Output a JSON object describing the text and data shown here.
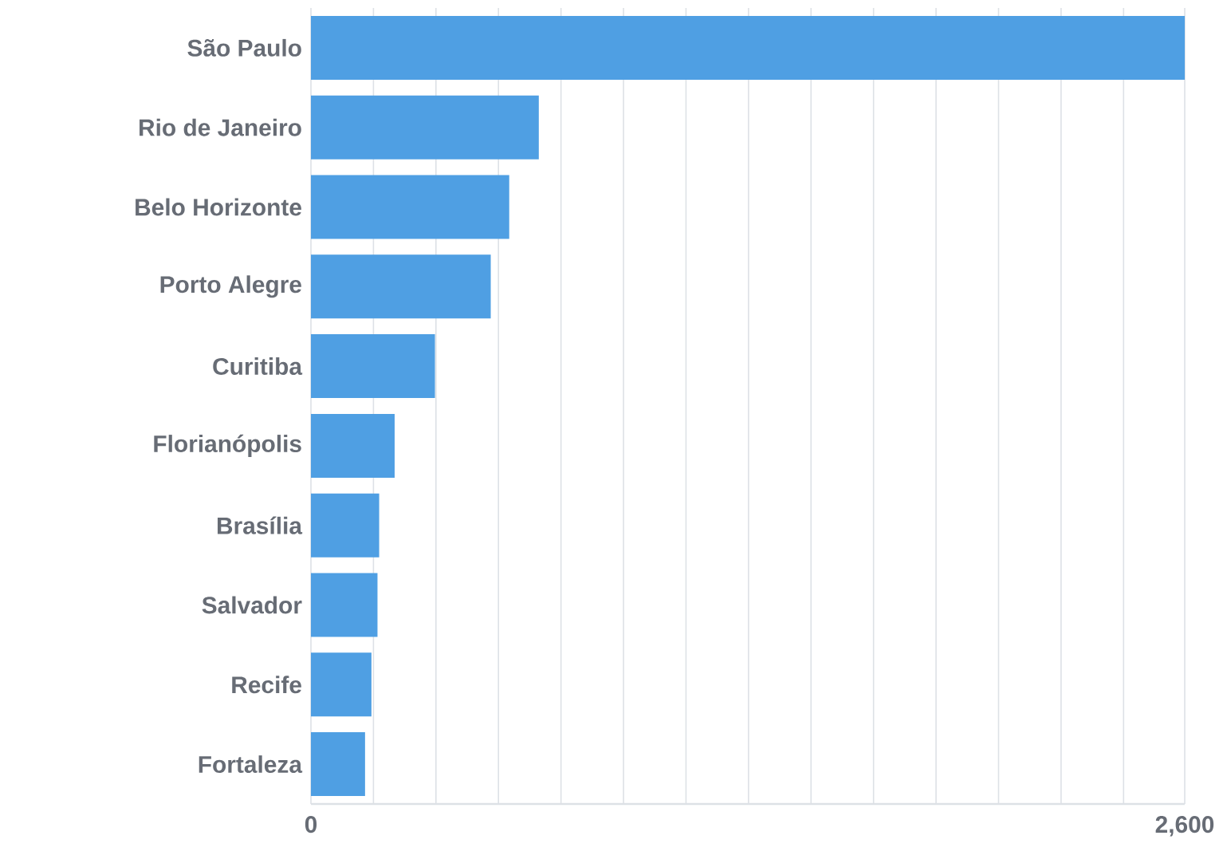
{
  "chart_data": {
    "type": "bar",
    "orientation": "horizontal",
    "categories": [
      "São Paulo",
      "Rio de Janeiro",
      "Belo Horizonte",
      "Porto Alegre",
      "Curitiba",
      "Florianópolis",
      "Brasília",
      "Salvador",
      "Recife",
      "Fortaleza"
    ],
    "values": [
      2600,
      678,
      590,
      535,
      369,
      249,
      203,
      198,
      180,
      161
    ],
    "color": "#4f9fe3",
    "xlim": [
      0,
      2600
    ],
    "xticks": [
      0,
      {
        "value": 186,
        "label": null
      },
      {
        "value": 372,
        "label": null
      },
      {
        "value": 558,
        "label": null
      },
      {
        "value": 744,
        "label": null
      },
      {
        "value": 930,
        "label": null
      },
      {
        "value": 1116,
        "label": null
      },
      {
        "value": 1302,
        "label": null
      },
      {
        "value": 1488,
        "label": null
      },
      {
        "value": 1674,
        "label": null
      },
      {
        "value": 1860,
        "label": null
      },
      {
        "value": 2046,
        "label": null
      },
      {
        "value": 2232,
        "label": null
      },
      {
        "value": 2418,
        "label": null
      },
      {
        "value": 2600,
        "label": "2,600"
      }
    ],
    "grid": "x"
  }
}
